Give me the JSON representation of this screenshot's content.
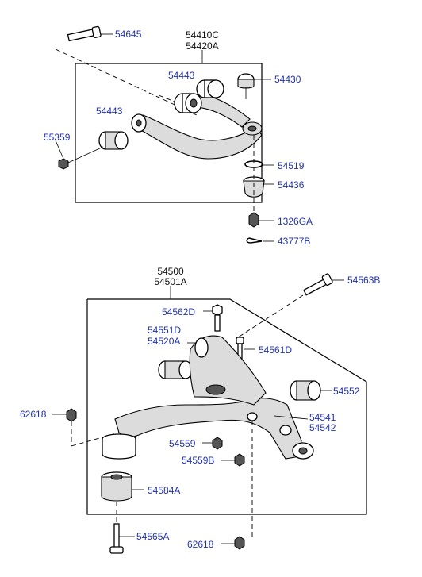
{
  "upper_arm": {
    "title_line1": "54410C",
    "title_line2": "54420A",
    "labels": {
      "bolt_top": "54645",
      "bushing_center": "54443",
      "bushing_left": "54443",
      "ball_joint": "54430",
      "nut_left": "55359",
      "snap_ring": "54519",
      "boot": "54436",
      "nut_bottom": "1326GA",
      "cotter_pin": "43777B"
    }
  },
  "lower_arm": {
    "title_line1": "54500",
    "title_line2": "54501A",
    "labels": {
      "bolt_right": "54563B",
      "bolt_small": "54562D",
      "bushing_a_line1": "54551D",
      "bushing_a_line2": "54520A",
      "bolt_vertical": "54561D",
      "bushing_right": "54552",
      "nut_left": "62618",
      "arm_line1": "54541",
      "arm_line2": "54542",
      "washer": "54559",
      "nut_center": "54559B",
      "bushing_lower": "54584A",
      "bolt_bottom": "54565A",
      "nut_bottom": "62618"
    }
  },
  "colors": {
    "label": "#2233aa",
    "line": "#000000",
    "shade": "#dcdcdc"
  }
}
